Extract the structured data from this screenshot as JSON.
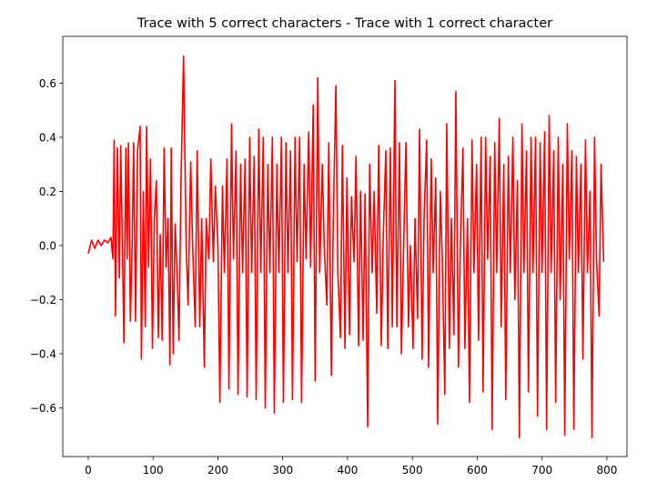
{
  "chart_data": {
    "type": "line",
    "title": "Trace with 5 correct characters - Trace with 1 correct character",
    "color": "#ff0000",
    "xlim": [
      -39.3,
      831
    ],
    "ylim": [
      -0.78,
      0.773
    ],
    "xticks": [
      0,
      100,
      200,
      300,
      400,
      500,
      600,
      700,
      800
    ],
    "yticks": [
      {
        "value": -0.6,
        "label": "−0.6"
      },
      {
        "value": -0.4,
        "label": "−0.4"
      },
      {
        "value": -0.2,
        "label": "−0.2"
      },
      {
        "value": 0,
        "label": "0.0"
      },
      0.2,
      0.4,
      0.6
    ],
    "x": [
      0,
      5,
      10,
      15,
      20,
      25,
      30,
      35,
      38,
      40,
      42,
      45,
      48,
      50,
      53,
      55,
      58,
      60,
      62,
      65,
      68,
      70,
      73,
      76,
      80,
      82,
      85,
      88,
      90,
      93,
      96,
      99,
      102,
      105,
      108,
      111,
      114,
      117,
      120,
      123,
      126,
      128,
      131,
      134,
      137,
      140,
      143,
      147,
      151,
      154,
      158,
      161,
      165,
      168,
      172,
      175,
      179,
      182,
      186,
      189,
      193,
      196,
      200,
      203,
      207,
      210,
      214,
      217,
      221,
      224,
      228,
      231,
      235,
      238,
      242,
      245,
      249,
      252,
      256,
      259,
      263,
      266,
      270,
      273,
      277,
      280,
      284,
      287,
      291,
      294,
      298,
      301,
      305,
      308,
      312,
      315,
      319,
      322,
      326,
      329,
      333,
      336,
      340,
      343,
      347,
      350,
      354,
      357,
      361,
      364,
      368,
      371,
      375,
      378,
      382,
      385,
      389,
      392,
      396,
      399,
      403,
      406,
      410,
      413,
      417,
      420,
      424,
      427,
      431,
      434,
      438,
      441,
      445,
      448,
      452,
      455,
      459,
      462,
      466,
      469,
      473,
      476,
      480,
      483,
      487,
      490,
      494,
      497,
      501,
      504,
      508,
      511,
      515,
      518,
      522,
      525,
      529,
      532,
      536,
      539,
      543,
      546,
      550,
      553,
      557,
      560,
      564,
      567,
      571,
      574,
      578,
      581,
      585,
      588,
      592,
      595,
      599,
      602,
      606,
      609,
      613,
      616,
      620,
      623,
      627,
      630,
      634,
      637,
      641,
      644,
      648,
      651,
      655,
      658,
      662,
      665,
      669,
      672,
      676,
      679,
      683,
      686,
      690,
      693,
      697,
      700,
      704,
      707,
      711,
      714,
      718,
      721,
      725,
      728,
      732,
      735,
      739,
      742,
      746,
      749,
      753,
      756,
      760,
      763,
      767,
      770,
      774,
      777,
      781,
      784,
      788,
      791,
      795
    ],
    "values": [
      -0.03,
      0.02,
      -0.01,
      0.02,
      0.0,
      0.02,
      0.01,
      0.03,
      -0.05,
      0.39,
      -0.26,
      0.36,
      -0.12,
      0.37,
      -0.05,
      -0.36,
      0.36,
      -0.05,
      0.38,
      -0.28,
      0.04,
      0.38,
      -0.28,
      0.35,
      0.44,
      -0.42,
      0.2,
      -0.3,
      0.44,
      -0.08,
      0.32,
      -0.38,
      0.1,
      0.24,
      -0.34,
      0.04,
      -0.35,
      0.36,
      -0.08,
      0.1,
      -0.44,
      0.36,
      -0.4,
      0.08,
      -0.1,
      -0.35,
      0.23,
      0.7,
      0.0,
      -0.22,
      0.31,
      0.0,
      -0.3,
      0.35,
      -0.3,
      0.1,
      -0.45,
      0.1,
      -0.05,
      0.32,
      -0.06,
      0.22,
      0.0,
      -0.58,
      0.22,
      -0.1,
      0.32,
      -0.53,
      0.45,
      -0.05,
      0.35,
      -0.55,
      0.3,
      -0.1,
      0.32,
      -0.56,
      0.4,
      -0.1,
      0.33,
      -0.57,
      0.43,
      -0.1,
      0.4,
      -0.6,
      0.3,
      -0.1,
      0.4,
      -0.62,
      0.3,
      -0.1,
      0.4,
      -0.58,
      0.38,
      -0.1,
      0.35,
      -0.57,
      0.4,
      -0.06,
      0.4,
      -0.58,
      0.3,
      -0.05,
      0.42,
      -0.08,
      0.52,
      -0.5,
      0.62,
      -0.1,
      0.3,
      0.0,
      -0.22,
      0.38,
      -0.48,
      0.1,
      0.59,
      -0.1,
      -0.34,
      0.37,
      -0.38,
      0.25,
      -0.33,
      0.18,
      -0.06,
      0.33,
      -0.37,
      0.2,
      -0.35,
      0.19,
      -0.67,
      0.3,
      -0.1,
      0.2,
      -0.25,
      0.37,
      -0.37,
      0.03,
      0.35,
      -0.38,
      0.36,
      -0.3,
      0.61,
      -0.3,
      0.38,
      -0.4,
      0.05,
      0.38,
      -0.3,
      0.0,
      -0.38,
      0.1,
      -0.27,
      0.43,
      -0.42,
      0.1,
      0.39,
      -0.45,
      0.32,
      -0.1,
      0.25,
      -0.66,
      0.2,
      -0.04,
      -0.55,
      0.45,
      -0.38,
      0.1,
      -0.33,
      0.57,
      -0.45,
      0.0,
      0.36,
      -0.38,
      0.1,
      -0.58,
      0.39,
      -0.1,
      0.3,
      -0.35,
      0.4,
      -0.54,
      0.4,
      -0.05,
      0.33,
      -0.68,
      0.38,
      -0.1,
      0.47,
      -0.3,
      0.3,
      -0.57,
      0.33,
      -0.1,
      0.4,
      -0.2,
      0.24,
      -0.71,
      0.45,
      -0.1,
      0.35,
      -0.54,
      0.4,
      -0.1,
      0.4,
      -0.63,
      0.38,
      -0.1,
      0.42,
      -0.68,
      0.48,
      -0.1,
      0.35,
      -0.58,
      0.4,
      -0.2,
      0.3,
      -0.7,
      0.45,
      -0.05,
      0.35,
      -0.68,
      0.33,
      -0.1,
      0.3,
      -0.42,
      0.39,
      -0.1,
      0.2,
      -0.71,
      0.4,
      -0.05,
      -0.26,
      0.3,
      -0.06
    ]
  }
}
